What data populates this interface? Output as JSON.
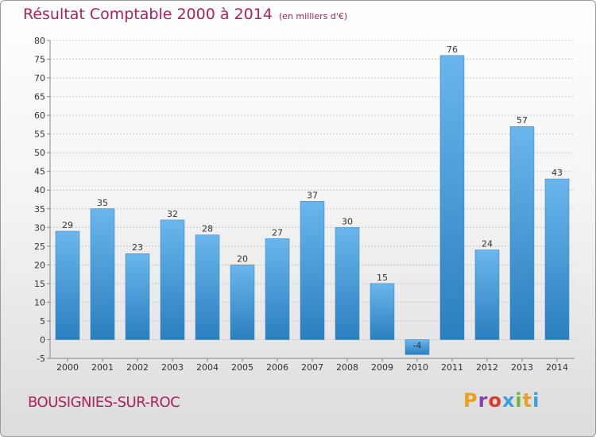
{
  "header": {
    "title": "Résultat Comptable 2000 à 2014",
    "unit": "(en milliers d'€)"
  },
  "footer": {
    "city": "BOUSIGNIES-SUR-ROC",
    "logo_text": "Proxiti",
    "logo_colors": [
      "#e8a01e",
      "#8a3fb0",
      "#e03a2a",
      "#3aa0e0",
      "#6bb82f",
      "#e8a01e",
      "#3aa0e0"
    ]
  },
  "colors": {
    "bar_light": "#6ab6ec",
    "bar_dark": "#2a7fbf",
    "title": "#b0205a"
  },
  "chart_data": {
    "type": "bar",
    "title": "Résultat Comptable 2000 à 2014",
    "xlabel": "",
    "ylabel": "",
    "categories": [
      "2000",
      "2001",
      "2002",
      "2003",
      "2004",
      "2005",
      "2006",
      "2007",
      "2008",
      "2009",
      "2010",
      "2011",
      "2012",
      "2013",
      "2014"
    ],
    "values": [
      29,
      35,
      23,
      32,
      28,
      20,
      27,
      37,
      30,
      15,
      -4,
      76,
      24,
      57,
      43
    ],
    "ylim": [
      -5,
      80
    ],
    "yticks": [
      -5,
      0,
      5,
      10,
      15,
      20,
      25,
      30,
      35,
      40,
      45,
      50,
      55,
      60,
      65,
      70,
      75,
      80
    ],
    "grid": true
  }
}
